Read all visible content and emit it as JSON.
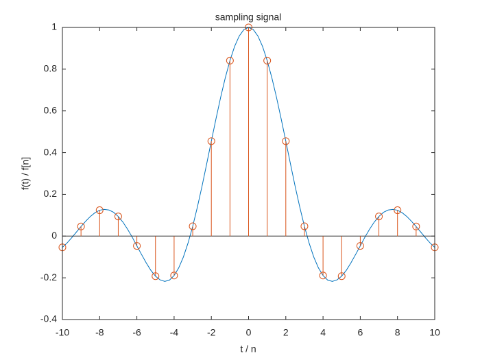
{
  "chart_data": {
    "type": "stem",
    "title": "sampling signal",
    "x_label": "t / n",
    "y_label": "f(t) / f[n]",
    "xlim": [
      -10,
      10
    ],
    "xticks": [
      -10,
      -8,
      -6,
      -4,
      -2,
      0,
      2,
      4,
      6,
      8,
      10
    ],
    "ylim": [
      -0.4,
      1
    ],
    "yticks": [
      -0.4,
      -0.2,
      0,
      0.2,
      0.4,
      0.6,
      0.8,
      1
    ],
    "series": [
      {
        "type": "line",
        "color": "#0072bd",
        "x": [
          -10,
          -9.75,
          -9.5,
          -9.25,
          -9,
          -8.75,
          -8.5,
          -8.25,
          -8,
          -7.75,
          -7.5,
          -7.25,
          -7,
          -6.75,
          -6.5,
          -6.25,
          -6,
          -5.75,
          -5.5,
          -5.25,
          -5,
          -4.75,
          -4.5,
          -4.25,
          -4,
          -3.75,
          -3.5,
          -3.25,
          -3,
          -2.75,
          -2.5,
          -2.25,
          -2,
          -1.75,
          -1.5,
          -1.25,
          -1,
          -0.75,
          -0.5,
          -0.25,
          0,
          0.25,
          0.5,
          0.75,
          1,
          1.25,
          1.5,
          1.75,
          2,
          2.25,
          2.5,
          2.75,
          3,
          3.25,
          3.5,
          3.75,
          4,
          4.25,
          4.5,
          4.75,
          5,
          5.25,
          5.5,
          5.75,
          6,
          6.25,
          6.5,
          6.75,
          7,
          7.25,
          7.5,
          7.75,
          8,
          8.25,
          8.5,
          8.75,
          9,
          9.25,
          9.5,
          9.75,
          10
        ],
        "values": [
          -0.054,
          -0.033,
          -0.008,
          0.019,
          0.046,
          0.071,
          0.094,
          0.112,
          0.124,
          0.128,
          0.125,
          0.114,
          0.094,
          0.067,
          0.033,
          -0.005,
          -0.047,
          -0.088,
          -0.128,
          -0.164,
          -0.192,
          -0.21,
          -0.217,
          -0.211,
          -0.189,
          -0.152,
          -0.1,
          -0.033,
          0.047,
          0.139,
          0.239,
          0.346,
          0.455,
          0.562,
          0.665,
          0.759,
          0.841,
          0.909,
          0.959,
          0.99,
          1,
          0.99,
          0.959,
          0.909,
          0.841,
          0.759,
          0.665,
          0.562,
          0.455,
          0.346,
          0.239,
          0.139,
          0.047,
          -0.033,
          -0.1,
          -0.152,
          -0.189,
          -0.211,
          -0.217,
          -0.21,
          -0.192,
          -0.164,
          -0.128,
          -0.088,
          -0.047,
          -0.005,
          0.033,
          0.067,
          0.094,
          0.114,
          0.125,
          0.128,
          0.124,
          0.112,
          0.094,
          0.071,
          0.046,
          0.019,
          -0.008,
          -0.033,
          -0.054
        ]
      },
      {
        "type": "stem",
        "color": "#d95319",
        "x": [
          -10,
          -9,
          -8,
          -7,
          -6,
          -5,
          -4,
          -3,
          -2,
          -1,
          0,
          1,
          2,
          3,
          4,
          5,
          6,
          7,
          8,
          9,
          10
        ],
        "values": [
          -0.054,
          0.046,
          0.124,
          0.094,
          -0.047,
          -0.192,
          -0.189,
          0.047,
          0.455,
          0.841,
          1,
          0.841,
          0.455,
          0.047,
          -0.189,
          -0.192,
          -0.047,
          0.094,
          0.124,
          0.046,
          -0.054
        ]
      }
    ]
  }
}
